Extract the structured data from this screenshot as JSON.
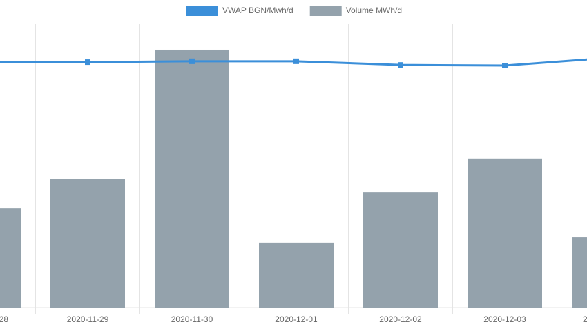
{
  "chart_data": {
    "type": "bar-line",
    "categories": [
      "28",
      "2020-11-29",
      "2020-11-30",
      "2020-12-01",
      "2020-12-02",
      "2020-12-03",
      "2"
    ],
    "series": [
      {
        "name": "VWAP BGN/Mwh/d",
        "type": "line",
        "color": "#3b8fd9",
        "axis": "y2",
        "values": [
          86.6,
          86.6,
          86.9,
          86.9,
          85.6,
          85.4,
          88.1
        ]
      },
      {
        "name": "Volume MWh/d",
        "type": "bar",
        "color": "#94a2ac",
        "values": [
          35,
          45.3,
          91,
          22.9,
          40.6,
          52.6,
          24.8
        ]
      }
    ],
    "ylim": [
      0,
      100
    ],
    "y2lim": [
      0,
      100
    ],
    "grid": true
  }
}
